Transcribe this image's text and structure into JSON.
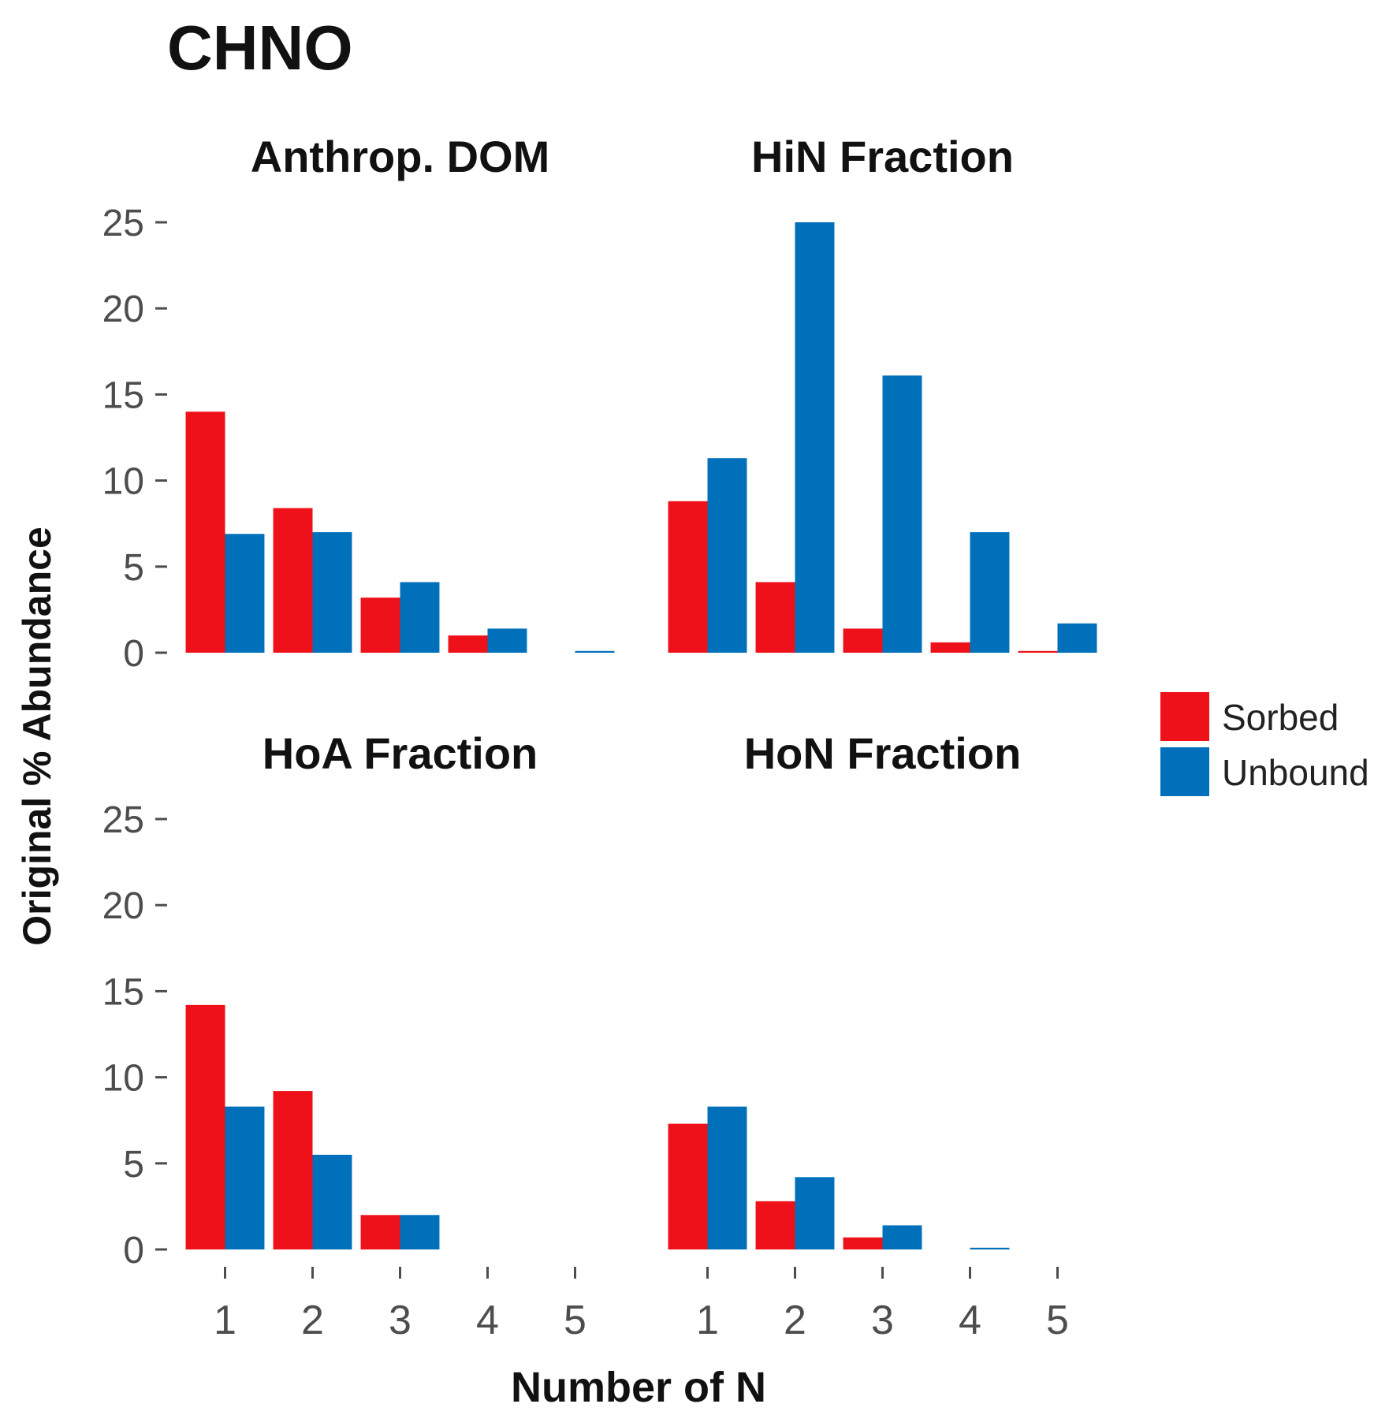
{
  "chart_data": {
    "type": "bar",
    "title": "CHNO",
    "xlabel": "Number of N",
    "ylabel": "Original % Abundance",
    "categories": [
      "1",
      "2",
      "3",
      "4",
      "5"
    ],
    "yticks": [
      "0",
      "5",
      "10",
      "15",
      "20",
      "25"
    ],
    "ylim": [
      0,
      25
    ],
    "grid": false,
    "legend_position": "right",
    "series_names": [
      "Sorbed",
      "Unbound"
    ],
    "colors": {
      "Sorbed": "#ee1119",
      "Unbound": "#0070bb"
    },
    "panels": [
      {
        "name": "Anthrop. DOM",
        "series": [
          {
            "name": "Sorbed",
            "values": [
              14.0,
              8.4,
              3.2,
              1.0,
              0.0
            ]
          },
          {
            "name": "Unbound",
            "values": [
              6.9,
              7.0,
              4.1,
              1.4,
              0.1
            ]
          }
        ]
      },
      {
        "name": "HiN Fraction",
        "series": [
          {
            "name": "Sorbed",
            "values": [
              8.8,
              4.1,
              1.4,
              0.6,
              0.1
            ]
          },
          {
            "name": "Unbound",
            "values": [
              11.3,
              25.0,
              16.1,
              7.0,
              1.7
            ]
          }
        ]
      },
      {
        "name": "HoA Fraction",
        "series": [
          {
            "name": "Sorbed",
            "values": [
              14.2,
              9.2,
              2.0,
              0.0,
              0.0
            ]
          },
          {
            "name": "Unbound",
            "values": [
              8.3,
              5.5,
              2.0,
              0.0,
              0.0
            ]
          }
        ]
      },
      {
        "name": "HoN Fraction",
        "series": [
          {
            "name": "Sorbed",
            "values": [
              7.3,
              2.8,
              0.7,
              0.0,
              0.0
            ]
          },
          {
            "name": "Unbound",
            "values": [
              8.3,
              4.2,
              1.4,
              0.1,
              0.0
            ]
          }
        ]
      }
    ]
  }
}
